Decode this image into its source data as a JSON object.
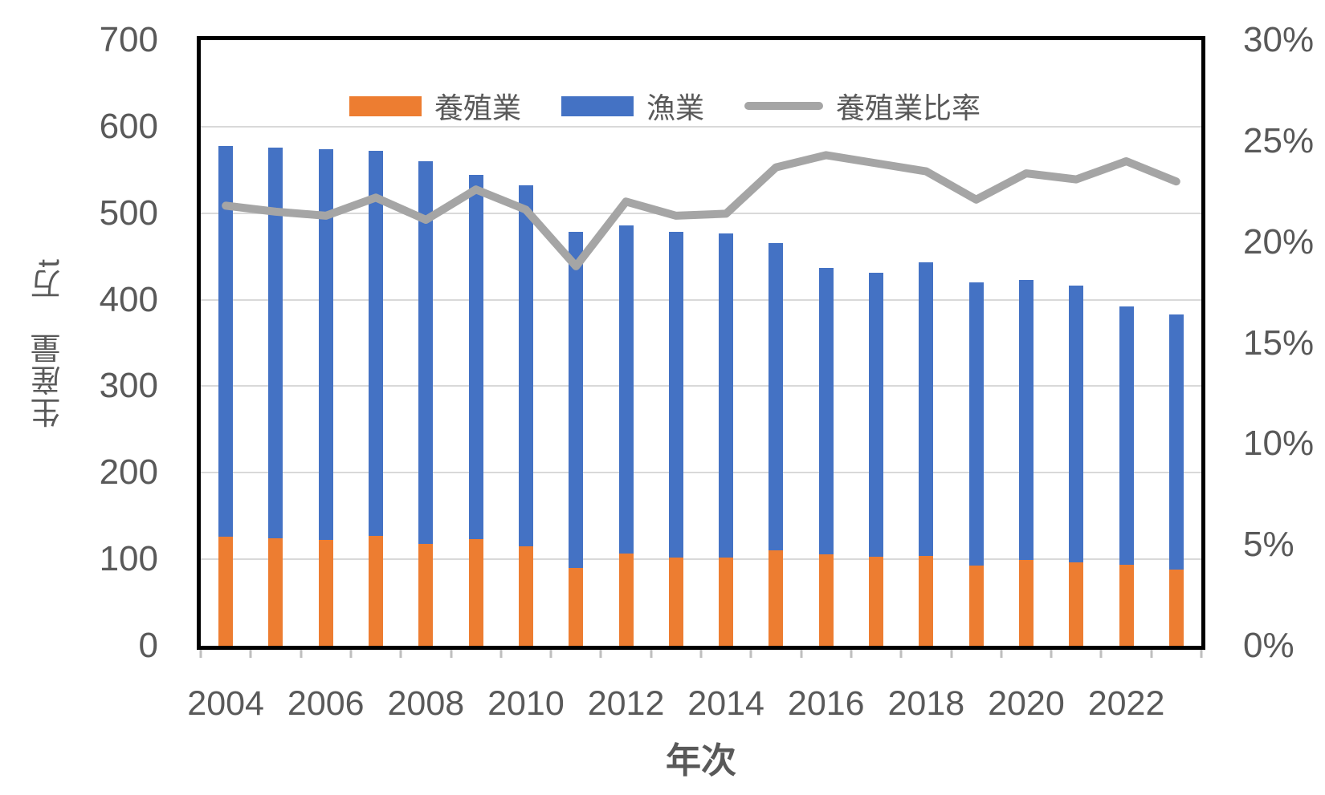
{
  "chart_data": {
    "type": "bar",
    "subtype": "stacked-column-with-line-overlay",
    "title": "",
    "categories": [
      "2004",
      "2005",
      "2006",
      "2007",
      "2008",
      "2009",
      "2010",
      "2011",
      "2012",
      "2013",
      "2014",
      "2015",
      "2016",
      "2017",
      "2018",
      "2019",
      "2020",
      "2021",
      "2022",
      "2023"
    ],
    "series": [
      {
        "name": "養殖業",
        "type": "bar",
        "stack": "production",
        "axis": "left",
        "color": "#ED7D31",
        "values": [
          126,
          124,
          122,
          127,
          118,
          123,
          115,
          90,
          107,
          102,
          102,
          110,
          106,
          103,
          104,
          93,
          99,
          96,
          94,
          88
        ]
      },
      {
        "name": "漁業",
        "type": "bar",
        "stack": "production",
        "axis": "left",
        "color": "#4472C4",
        "values": [
          452,
          452,
          452,
          445,
          442,
          421,
          417,
          388,
          379,
          376,
          375,
          355,
          331,
          328,
          339,
          327,
          324,
          320,
          298,
          295
        ]
      },
      {
        "name": "養殖業比率",
        "type": "line",
        "axis": "right",
        "color": "#A5A5A5",
        "values": [
          21.8,
          21.5,
          21.3,
          22.2,
          21.1,
          22.6,
          21.6,
          18.8,
          22.0,
          21.3,
          21.4,
          23.7,
          24.3,
          23.9,
          23.5,
          22.1,
          23.4,
          23.1,
          24.0,
          23.0
        ]
      }
    ],
    "left_axis": {
      "title": "生産量　万t",
      "min": 0,
      "max": 700,
      "interval": 100,
      "ticks": [
        {
          "value": 700,
          "label": "700"
        },
        {
          "value": 600,
          "label": "600"
        },
        {
          "value": 500,
          "label": "500"
        },
        {
          "value": 400,
          "label": "400"
        },
        {
          "value": 300,
          "label": "300"
        },
        {
          "value": 200,
          "label": "200"
        },
        {
          "value": 100,
          "label": "100"
        },
        {
          "value": 0,
          "label": "0"
        }
      ]
    },
    "right_axis": {
      "min": 0,
      "max": 30,
      "interval": 5,
      "ticks": [
        {
          "value": 30,
          "label": "30%"
        },
        {
          "value": 25,
          "label": "25%"
        },
        {
          "value": 20,
          "label": "20%"
        },
        {
          "value": 15,
          "label": "15%"
        },
        {
          "value": 10,
          "label": "10%"
        },
        {
          "value": 5,
          "label": "5%"
        },
        {
          "value": 0,
          "label": "0%"
        }
      ]
    },
    "x_axis": {
      "title": "年次",
      "label_every": 2,
      "visible_tick_labels": [
        "2004",
        "2006",
        "2008",
        "2010",
        "2012",
        "2014",
        "2016",
        "2018",
        "2020",
        "2022"
      ]
    },
    "legend": {
      "position": "top-center",
      "items": [
        {
          "label": "養殖業",
          "swatch": "rect",
          "color": "#ED7D31"
        },
        {
          "label": "漁業",
          "swatch": "rect",
          "color": "#4472C4"
        },
        {
          "label": "養殖業比率",
          "swatch": "line",
          "color": "#A5A5A5"
        }
      ]
    },
    "grid": true,
    "style_colors": {
      "gridline": "#D9D9D9",
      "axis_text": "#595959",
      "plot_border": "#000000",
      "tick_mark": "#BFBFBF",
      "background": "#FFFFFF"
    }
  }
}
